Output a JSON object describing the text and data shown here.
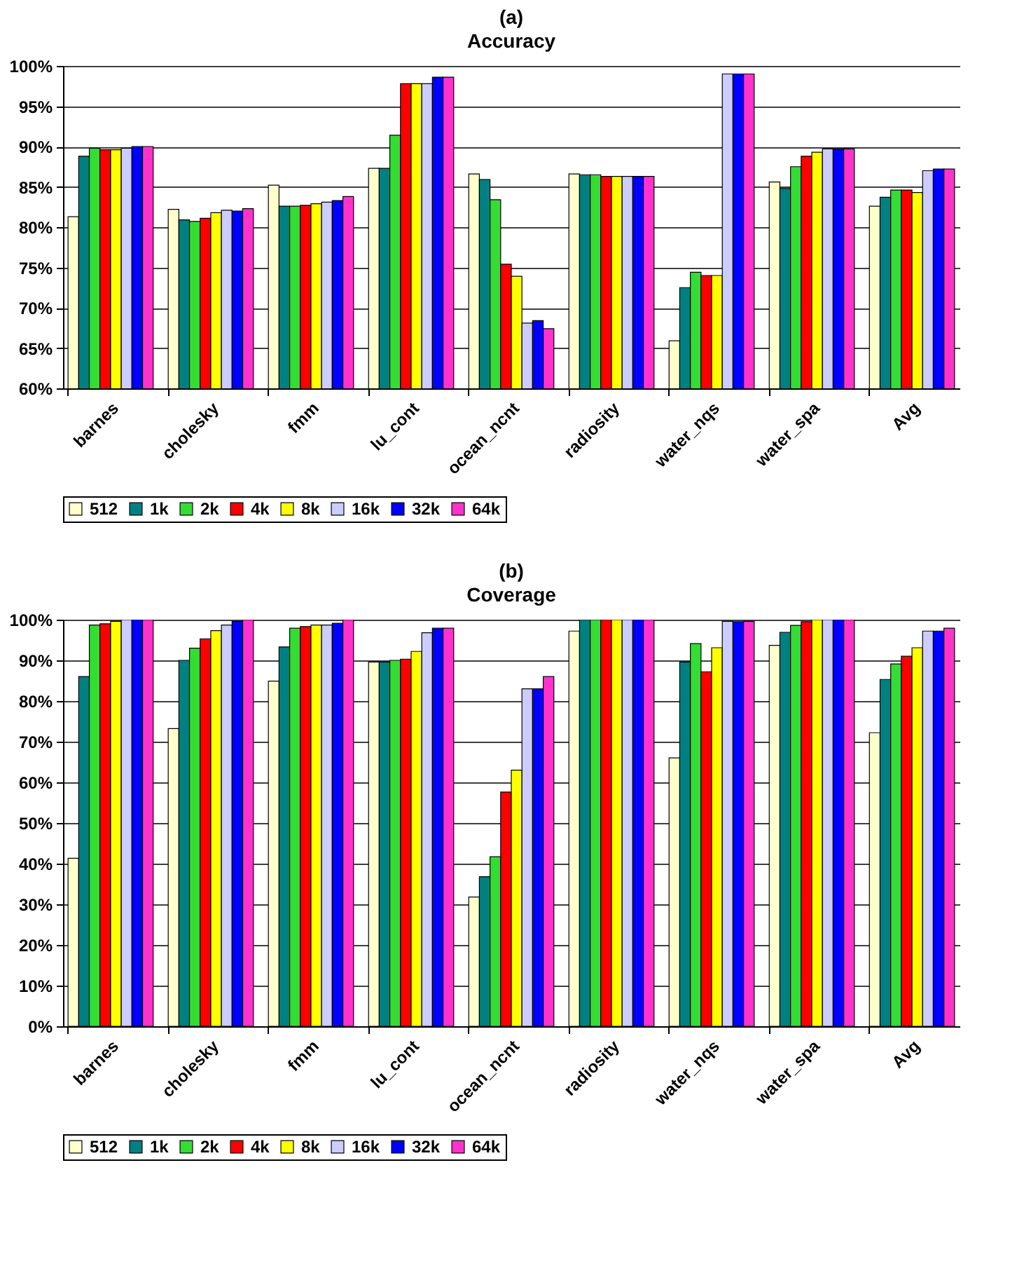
{
  "chart_data": [
    {
      "type": "bar",
      "title": "(a)",
      "subtitle": "Accuracy",
      "categories": [
        "barnes",
        "cholesky",
        "fmm",
        "lu_cont",
        "ocean_ncnt",
        "radiosity",
        "water_nqs",
        "water_spa",
        "Avg"
      ],
      "series": [
        {
          "name": "512",
          "color": "#ffffcc",
          "values": [
            81.3,
            82.2,
            85.2,
            87.3,
            86.6,
            86.6,
            65.9,
            85.6,
            82.6
          ]
        },
        {
          "name": "1k",
          "color": "#008080",
          "values": [
            88.8,
            80.9,
            82.6,
            87.3,
            85.9,
            86.5,
            72.5,
            84.8,
            83.7
          ]
        },
        {
          "name": "2k",
          "color": "#33dd33",
          "values": [
            89.8,
            80.7,
            82.6,
            91.4,
            83.4,
            86.5,
            74.4,
            87.5,
            84.6
          ]
        },
        {
          "name": "4k",
          "color": "#ff0000",
          "values": [
            89.6,
            81.1,
            82.7,
            97.8,
            75.4,
            86.3,
            74.0,
            88.8,
            84.6
          ]
        },
        {
          "name": "8k",
          "color": "#ffff00",
          "values": [
            89.6,
            81.8,
            82.9,
            97.8,
            73.9,
            86.3,
            74.0,
            89.3,
            84.3
          ]
        },
        {
          "name": "16k",
          "color": "#ccccff",
          "values": [
            89.8,
            82.1,
            83.1,
            97.8,
            68.1,
            86.3,
            99.0,
            89.7,
            87.0
          ]
        },
        {
          "name": "32k",
          "color": "#0000ff",
          "values": [
            90.0,
            82.0,
            83.3,
            98.6,
            68.4,
            86.3,
            99.0,
            89.7,
            87.2
          ]
        },
        {
          "name": "64k",
          "color": "#ff33cc",
          "values": [
            90.0,
            82.3,
            83.8,
            98.6,
            67.4,
            86.3,
            99.0,
            89.7,
            87.2
          ]
        }
      ],
      "ylim": [
        60,
        100
      ],
      "yticks": [
        {
          "value": 60,
          "label": "60%"
        },
        {
          "value": 65,
          "label": "65%"
        },
        {
          "value": 70,
          "label": "70%"
        },
        {
          "value": 75,
          "label": "75%"
        },
        {
          "value": 80,
          "label": "80%"
        },
        {
          "value": 85,
          "label": "85%"
        },
        {
          "value": 90,
          "label": "90%"
        },
        {
          "value": 95,
          "label": "95%"
        },
        {
          "value": 100,
          "label": "100%"
        }
      ],
      "grid": "y",
      "legend": "bottom"
    },
    {
      "type": "bar",
      "title": "(b)",
      "subtitle": "Coverage",
      "categories": [
        "barnes",
        "cholesky",
        "fmm",
        "lu_cont",
        "ocean_ncnt",
        "radiosity",
        "water_nqs",
        "water_spa",
        "Avg"
      ],
      "series": [
        {
          "name": "512",
          "color": "#ffffcc",
          "values": [
            41.3,
            73.2,
            84.9,
            89.6,
            31.8,
            97.2,
            66.0,
            93.7,
            72.2
          ]
        },
        {
          "name": "1k",
          "color": "#008080",
          "values": [
            86.0,
            90.0,
            93.3,
            89.6,
            36.8,
            100,
            89.6,
            96.9,
            85.3
          ]
        },
        {
          "name": "2k",
          "color": "#33dd33",
          "values": [
            98.7,
            93.0,
            97.9,
            90.0,
            41.7,
            100,
            94.1,
            98.6,
            89.1
          ]
        },
        {
          "name": "4k",
          "color": "#ff0000",
          "values": [
            99.0,
            95.3,
            98.3,
            90.3,
            57.6,
            100,
            87.2,
            99.5,
            91.0
          ]
        },
        {
          "name": "8k",
          "color": "#ffff00",
          "values": [
            99.6,
            97.3,
            98.7,
            92.2,
            63.0,
            100,
            93.1,
            100,
            93.1
          ]
        },
        {
          "name": "16k",
          "color": "#ccccff",
          "values": [
            100,
            98.7,
            98.7,
            96.8,
            83.0,
            100,
            99.6,
            100,
            97.2
          ]
        },
        {
          "name": "32k",
          "color": "#0000ff",
          "values": [
            100,
            99.6,
            99.1,
            97.9,
            83.0,
            100,
            99.5,
            100,
            97.2
          ]
        },
        {
          "name": "64k",
          "color": "#ff33cc",
          "values": [
            100,
            100,
            100,
            97.9,
            86.0,
            100,
            99.6,
            100,
            97.9
          ]
        }
      ],
      "ylim": [
        0,
        100
      ],
      "yticks": [
        {
          "value": 0,
          "label": "0%"
        },
        {
          "value": 10,
          "label": "10%"
        },
        {
          "value": 20,
          "label": "20%"
        },
        {
          "value": 30,
          "label": "30%"
        },
        {
          "value": 40,
          "label": "40%"
        },
        {
          "value": 50,
          "label": "50%"
        },
        {
          "value": 60,
          "label": "60%"
        },
        {
          "value": 70,
          "label": "70%"
        },
        {
          "value": 80,
          "label": "80%"
        },
        {
          "value": 90,
          "label": "90%"
        },
        {
          "value": 100,
          "label": "100%"
        }
      ],
      "grid": "y",
      "legend": "bottom"
    }
  ]
}
